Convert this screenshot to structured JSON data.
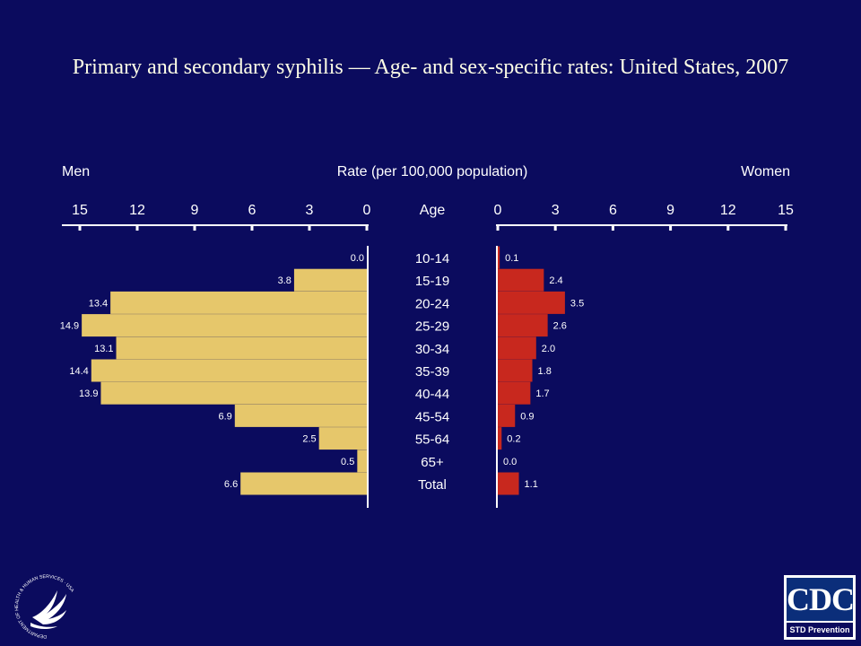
{
  "title": "Primary and secondary syphilis — Age- and sex-specific rates: United States, 2007",
  "colors": {
    "background": "#0b0b5e",
    "men_bar": "#e6c76b",
    "women_bar": "#c8281e",
    "text": "#ffffff"
  },
  "chart_data": {
    "type": "bar",
    "orientation": "horizontal-butterfly",
    "left_label": "Men",
    "center_label": "Rate (per 100,000 population)",
    "right_label": "Women",
    "category_header": "Age",
    "categories": [
      "10-14",
      "15-19",
      "20-24",
      "25-29",
      "30-34",
      "35-39",
      "40-44",
      "45-54",
      "55-64",
      "65+",
      "Total"
    ],
    "ticks": [
      0,
      3,
      6,
      9,
      12,
      15
    ],
    "xlim": [
      0,
      15
    ],
    "series": [
      {
        "name": "Men",
        "values": [
          0.0,
          3.8,
          13.4,
          14.9,
          13.1,
          14.4,
          13.9,
          6.9,
          2.5,
          0.5,
          6.6
        ],
        "labels": [
          "0.0",
          "3.8",
          "13.4",
          "14.9",
          "13.1",
          "14.4",
          "13.9",
          "6.9",
          "2.5",
          "0.5",
          "6.6"
        ]
      },
      {
        "name": "Women",
        "values": [
          0.1,
          2.4,
          3.5,
          2.6,
          2.0,
          1.8,
          1.7,
          0.9,
          0.2,
          0.0,
          1.1
        ],
        "labels": [
          "0.1",
          "2.4",
          "3.5",
          "2.6",
          "2.0",
          "1.8",
          "1.7",
          "0.9",
          "0.2",
          "0.0",
          "1.1"
        ]
      }
    ]
  },
  "logos": {
    "hhs": {
      "name": "hhs-eagle-seal",
      "text": "DEPARTMENT OF HEALTH & HUMAN SERVICES · USA"
    },
    "cdc": {
      "mark": "CDC",
      "tagline": "STD Prevention"
    }
  }
}
